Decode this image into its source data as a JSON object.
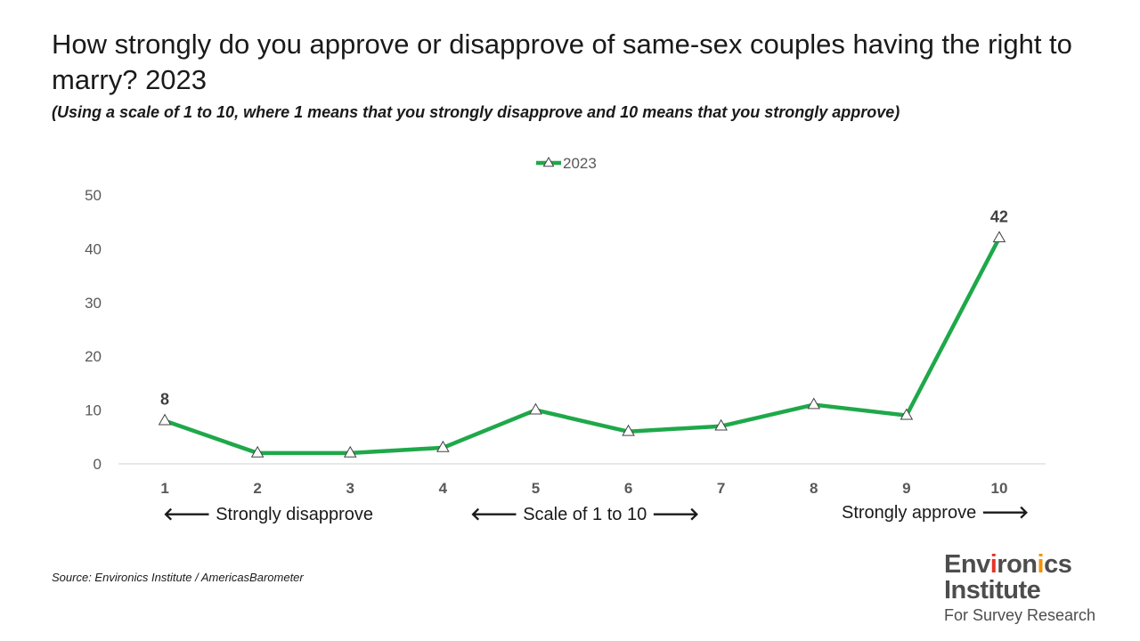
{
  "title": "How strongly do you approve or disapprove of same-sex couples having the right to marry?  2023",
  "subtitle": "(Using a scale of 1 to 10, where 1 means that you strongly disapprove and 10 means that you strongly approve)",
  "annotations": {
    "left": "Strongly disapprove",
    "middle": "Scale of 1 to 10",
    "right": "Strongly approve",
    "arrow_left": "🡐",
    "arrow_right": "🡒"
  },
  "source": "Source: Environics Institute / AmericasBarometer",
  "logo": {
    "line1": "Environics",
    "line2": "Institute",
    "line3": "For Survey Research"
  },
  "colors": {
    "series": "#1fa84a",
    "axis": "#d9d9d9",
    "logo_accents": [
      "#e63329",
      "#f39200",
      "#2b9ad6",
      "#7ab648"
    ]
  },
  "chart_data": {
    "type": "line",
    "categories": [
      "1",
      "2",
      "3",
      "4",
      "5",
      "6",
      "7",
      "8",
      "9",
      "10"
    ],
    "series": [
      {
        "name": "2023",
        "marker": "triangle",
        "values": [
          8,
          2,
          2,
          3,
          10,
          6,
          7,
          11,
          9,
          42
        ]
      }
    ],
    "data_labels": [
      {
        "index": 0,
        "text": "8"
      },
      {
        "index": 9,
        "text": "42"
      }
    ],
    "ylim": [
      0,
      50
    ],
    "yticks": [
      0,
      10,
      20,
      30,
      40,
      50
    ],
    "grid": false,
    "legend": "top-center",
    "xlabel": "",
    "ylabel": ""
  }
}
